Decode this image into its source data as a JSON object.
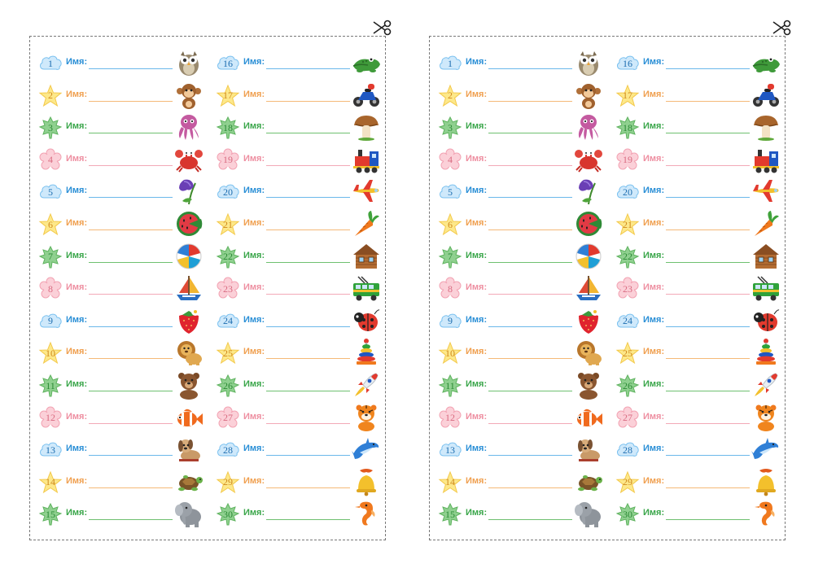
{
  "name_label": "Имя:",
  "colors": {
    "blue": "#2a8fd6",
    "orange": "#f0a050",
    "green": "#3aa64a",
    "pink": "#ee8fa1",
    "border": "#777777"
  },
  "sheets": [
    {
      "id": "left",
      "columns": [
        [
          {
            "number": "1",
            "theme": "blue",
            "shape": "cloud",
            "picture": "owl-icon"
          },
          {
            "number": "2",
            "theme": "orange",
            "shape": "star",
            "picture": "monkey-icon"
          },
          {
            "number": "3",
            "theme": "green",
            "shape": "leaf",
            "picture": "octopus-icon"
          },
          {
            "number": "4",
            "theme": "pink",
            "shape": "flower",
            "picture": "crab-icon"
          },
          {
            "number": "5",
            "theme": "blue",
            "shape": "cloud",
            "picture": "bellflower-icon"
          },
          {
            "number": "6",
            "theme": "orange",
            "shape": "star",
            "picture": "watermelon-icon"
          },
          {
            "number": "7",
            "theme": "green",
            "shape": "leaf",
            "picture": "beach-ball-icon"
          },
          {
            "number": "8",
            "theme": "pink",
            "shape": "flower",
            "picture": "sailboat-icon"
          },
          {
            "number": "9",
            "theme": "blue",
            "shape": "cloud",
            "picture": "strawberry-icon"
          },
          {
            "number": "10",
            "theme": "orange",
            "shape": "star",
            "picture": "lion-icon"
          },
          {
            "number": "11",
            "theme": "green",
            "shape": "leaf",
            "picture": "bear-icon"
          },
          {
            "number": "12",
            "theme": "pink",
            "shape": "flower",
            "picture": "clownfish-icon"
          },
          {
            "number": "13",
            "theme": "blue",
            "shape": "cloud",
            "picture": "puppy-icon"
          },
          {
            "number": "14",
            "theme": "orange",
            "shape": "star",
            "picture": "turtle-icon"
          },
          {
            "number": "15",
            "theme": "green",
            "shape": "leaf",
            "picture": "elephant-icon"
          }
        ],
        [
          {
            "number": "16",
            "theme": "blue",
            "shape": "cloud",
            "picture": "crocodile-icon"
          },
          {
            "number": "17",
            "theme": "orange",
            "shape": "star",
            "picture": "motorcycle-icon"
          },
          {
            "number": "18",
            "theme": "green",
            "shape": "leaf",
            "picture": "mushroom-icon"
          },
          {
            "number": "19",
            "theme": "pink",
            "shape": "flower",
            "picture": "train-icon"
          },
          {
            "number": "20",
            "theme": "blue",
            "shape": "cloud",
            "picture": "airplane-icon"
          },
          {
            "number": "21",
            "theme": "orange",
            "shape": "star",
            "picture": "carrot-icon"
          },
          {
            "number": "22",
            "theme": "green",
            "shape": "leaf",
            "picture": "log-house-icon"
          },
          {
            "number": "23",
            "theme": "pink",
            "shape": "flower",
            "picture": "trolleybus-icon"
          },
          {
            "number": "24",
            "theme": "blue",
            "shape": "cloud",
            "picture": "ladybug-icon"
          },
          {
            "number": "25",
            "theme": "orange",
            "shape": "star",
            "picture": "pyramid-toy-icon"
          },
          {
            "number": "26",
            "theme": "green",
            "shape": "leaf",
            "picture": "rocket-icon"
          },
          {
            "number": "27",
            "theme": "pink",
            "shape": "flower",
            "picture": "tiger-icon"
          },
          {
            "number": "28",
            "theme": "blue",
            "shape": "cloud",
            "picture": "dolphin-icon"
          },
          {
            "number": "29",
            "theme": "orange",
            "shape": "star",
            "picture": "bell-icon"
          },
          {
            "number": "30",
            "theme": "green",
            "shape": "leaf",
            "picture": "seahorse-icon"
          }
        ]
      ]
    },
    {
      "id": "right",
      "columns": [
        [
          {
            "number": "1",
            "theme": "blue",
            "shape": "cloud",
            "picture": "owl-icon"
          },
          {
            "number": "2",
            "theme": "orange",
            "shape": "star",
            "picture": "monkey-icon"
          },
          {
            "number": "3",
            "theme": "green",
            "shape": "leaf",
            "picture": "octopus-icon"
          },
          {
            "number": "4",
            "theme": "pink",
            "shape": "flower",
            "picture": "crab-icon"
          },
          {
            "number": "5",
            "theme": "blue",
            "shape": "cloud",
            "picture": "bellflower-icon"
          },
          {
            "number": "6",
            "theme": "orange",
            "shape": "star",
            "picture": "watermelon-icon"
          },
          {
            "number": "7",
            "theme": "green",
            "shape": "leaf",
            "picture": "beach-ball-icon"
          },
          {
            "number": "8",
            "theme": "pink",
            "shape": "flower",
            "picture": "sailboat-icon"
          },
          {
            "number": "9",
            "theme": "blue",
            "shape": "cloud",
            "picture": "strawberry-icon"
          },
          {
            "number": "10",
            "theme": "orange",
            "shape": "star",
            "picture": "lion-icon"
          },
          {
            "number": "11",
            "theme": "green",
            "shape": "leaf",
            "picture": "bear-icon"
          },
          {
            "number": "12",
            "theme": "pink",
            "shape": "flower",
            "picture": "clownfish-icon"
          },
          {
            "number": "13",
            "theme": "blue",
            "shape": "cloud",
            "picture": "puppy-icon"
          },
          {
            "number": "14",
            "theme": "orange",
            "shape": "star",
            "picture": "turtle-icon"
          },
          {
            "number": "15",
            "theme": "green",
            "shape": "leaf",
            "picture": "elephant-icon"
          }
        ],
        [
          {
            "number": "16",
            "theme": "blue",
            "shape": "cloud",
            "picture": "crocodile-icon"
          },
          {
            "number": "17",
            "theme": "orange",
            "shape": "star",
            "picture": "motorcycle-icon"
          },
          {
            "number": "18",
            "theme": "green",
            "shape": "leaf",
            "picture": "mushroom-icon"
          },
          {
            "number": "19",
            "theme": "pink",
            "shape": "flower",
            "picture": "train-icon"
          },
          {
            "number": "20",
            "theme": "blue",
            "shape": "cloud",
            "picture": "airplane-icon"
          },
          {
            "number": "21",
            "theme": "orange",
            "shape": "star",
            "picture": "carrot-icon"
          },
          {
            "number": "22",
            "theme": "green",
            "shape": "leaf",
            "picture": "log-house-icon"
          },
          {
            "number": "23",
            "theme": "pink",
            "shape": "flower",
            "picture": "trolleybus-icon"
          },
          {
            "number": "24",
            "theme": "blue",
            "shape": "cloud",
            "picture": "ladybug-icon"
          },
          {
            "number": "25",
            "theme": "orange",
            "shape": "star",
            "picture": "pyramid-toy-icon"
          },
          {
            "number": "26",
            "theme": "green",
            "shape": "leaf",
            "picture": "rocket-icon"
          },
          {
            "number": "27",
            "theme": "pink",
            "shape": "flower",
            "picture": "tiger-icon"
          },
          {
            "number": "28",
            "theme": "blue",
            "shape": "cloud",
            "picture": "dolphin-icon"
          },
          {
            "number": "29",
            "theme": "orange",
            "shape": "star",
            "picture": "bell-icon"
          },
          {
            "number": "30",
            "theme": "green",
            "shape": "leaf",
            "picture": "seahorse-icon"
          }
        ]
      ]
    }
  ]
}
